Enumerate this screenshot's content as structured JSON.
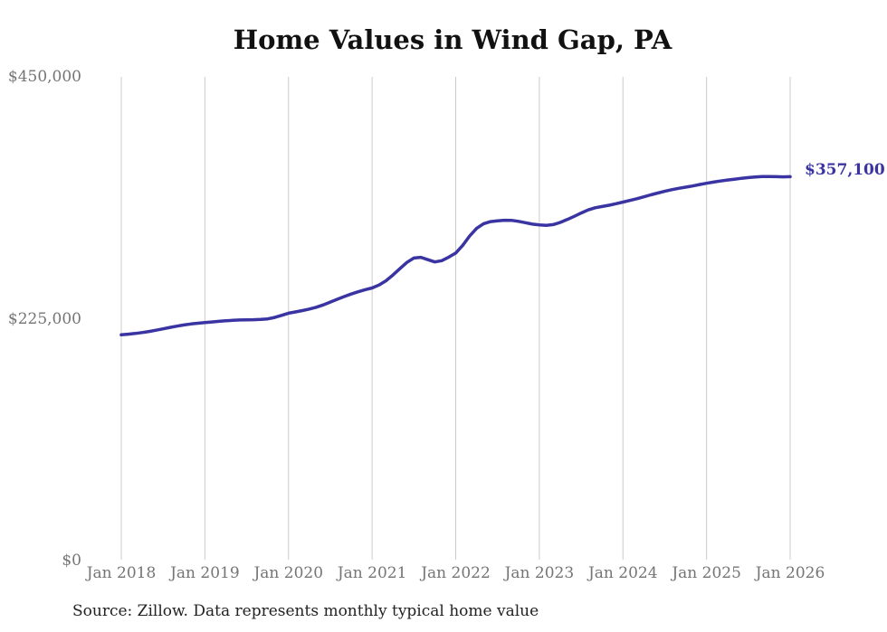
{
  "title": "Home Values in Wind Gap, PA",
  "source_note": "Source: Zillow. Data represents monthly typical home value",
  "annotation": {
    "text": "$357,100"
  },
  "colors": {
    "line": "#3a34a3",
    "grid": "#cccccc",
    "tick_label": "#757575",
    "title": "#111111",
    "source_text": "#222222",
    "background": "#ffffff"
  },
  "chart_data": {
    "type": "line",
    "title": "Home Values in Wind Gap, PA",
    "frequency": "monthly",
    "x_start": "2018-01",
    "x_end": "2026-01",
    "x_tick_labels": [
      "Jan 2018",
      "Jan 2019",
      "Jan 2020",
      "Jan 2021",
      "Jan 2022",
      "Jan 2023",
      "Jan 2024",
      "Jan 2025",
      "Jan 2026"
    ],
    "y_ticks": [
      {
        "label": "$0",
        "value": 0
      },
      {
        "label": "$225,000",
        "value": 225000
      },
      {
        "label": "$450,000",
        "value": 450000
      }
    ],
    "ylim": [
      0,
      450000
    ],
    "grid": "vertical",
    "legend": "none",
    "end_annotation": "$357,100",
    "final_value": 357100,
    "series": [
      {
        "name": "Typical home value",
        "color": "#3a34a3",
        "values": [
          210000,
          210600,
          211300,
          212100,
          213100,
          214300,
          215600,
          216900,
          218100,
          219200,
          220100,
          220800,
          221400,
          222000,
          222600,
          223100,
          223500,
          223800,
          224000,
          224100,
          224300,
          224800,
          226200,
          228100,
          230100,
          231300,
          232600,
          234000,
          235700,
          237900,
          240500,
          243100,
          245600,
          248000,
          250100,
          252000,
          253600,
          256400,
          260300,
          265700,
          271600,
          277400,
          281400,
          282100,
          279900,
          277800,
          279000,
          282300,
          286100,
          293200,
          302000,
          309000,
          313400,
          315300,
          316100,
          316600,
          316500,
          315600,
          314300,
          313000,
          312300,
          311900,
          312600,
          314600,
          317300,
          320200,
          323300,
          326200,
          328200,
          329400,
          330600,
          332000,
          333500,
          335000,
          336600,
          338400,
          340200,
          341900,
          343500,
          345000,
          346300,
          347400,
          348500,
          349800,
          351000,
          352100,
          353100,
          354000,
          354800,
          355600,
          356300,
          356900,
          357300,
          357300,
          357100,
          357000,
          357100
        ]
      }
    ]
  }
}
